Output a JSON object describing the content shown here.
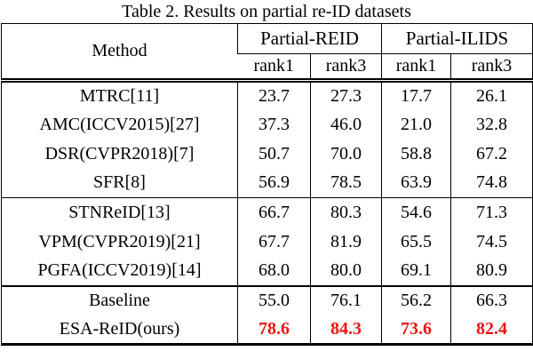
{
  "caption": "Table 2. Results on partial re-ID datasets",
  "header": {
    "method": "Method",
    "groups": [
      "Partial-REID",
      "Partial-ILIDS"
    ],
    "subcols": [
      "rank1",
      "rank3",
      "rank1",
      "rank3"
    ]
  },
  "rows": [
    {
      "method": "MTRC[11]",
      "values": [
        "23.7",
        "27.3",
        "17.7",
        "26.1"
      ],
      "highlight": false
    },
    {
      "method": "AMC(ICCV2015)[27]",
      "values": [
        "37.3",
        "46.0",
        "21.0",
        "32.8"
      ],
      "highlight": false
    },
    {
      "method": "DSR(CVPR2018)[7]",
      "values": [
        "50.7",
        "70.0",
        "58.8",
        "67.2"
      ],
      "highlight": false
    },
    {
      "method": "SFR[8]",
      "values": [
        "56.9",
        "78.5",
        "63.9",
        "74.8"
      ],
      "highlight": false
    },
    {
      "method": "STNReID[13]",
      "values": [
        "66.7",
        "80.3",
        "54.6",
        "71.3"
      ],
      "highlight": false
    },
    {
      "method": "VPM(CVPR2019)[21]",
      "values": [
        "67.7",
        "81.9",
        "65.5",
        "74.5"
      ],
      "highlight": false
    },
    {
      "method": "PGFA(ICCV2019)[14]",
      "values": [
        "68.0",
        "80.0",
        "69.1",
        "80.9"
      ],
      "highlight": false
    },
    {
      "method": "Baseline",
      "values": [
        "55.0",
        "76.1",
        "56.2",
        "66.3"
      ],
      "highlight": false
    },
    {
      "method": "ESA-ReID(ours)",
      "values": [
        "78.6",
        "84.3",
        "73.6",
        "82.4"
      ],
      "highlight": true
    }
  ],
  "colors": {
    "highlight_value": "#ee1111",
    "text": "#000000",
    "border": "#000000",
    "background": "#ffffff"
  },
  "chart_data": {
    "type": "table",
    "title": "Table 2. Results on partial re-ID datasets",
    "column_groups": [
      "Partial-REID",
      "Partial-ILIDS"
    ],
    "columns": [
      "Method",
      "Partial-REID rank1",
      "Partial-REID rank3",
      "Partial-ILIDS rank1",
      "Partial-ILIDS rank3"
    ],
    "rows": [
      [
        "MTRC[11]",
        23.7,
        27.3,
        17.7,
        26.1
      ],
      [
        "AMC(ICCV2015)[27]",
        37.3,
        46.0,
        21.0,
        32.8
      ],
      [
        "DSR(CVPR2018)[7]",
        50.7,
        70.0,
        58.8,
        67.2
      ],
      [
        "SFR[8]",
        56.9,
        78.5,
        63.9,
        74.8
      ],
      [
        "STNReID[13]",
        66.7,
        80.3,
        54.6,
        71.3
      ],
      [
        "VPM(CVPR2019)[21]",
        67.7,
        81.9,
        65.5,
        74.5
      ],
      [
        "PGFA(ICCV2019)[14]",
        68.0,
        80.0,
        69.1,
        80.9
      ],
      [
        "Baseline",
        55.0,
        76.1,
        56.2,
        66.3
      ],
      [
        "ESA-ReID(ours)",
        78.6,
        84.3,
        73.6,
        82.4
      ]
    ]
  }
}
